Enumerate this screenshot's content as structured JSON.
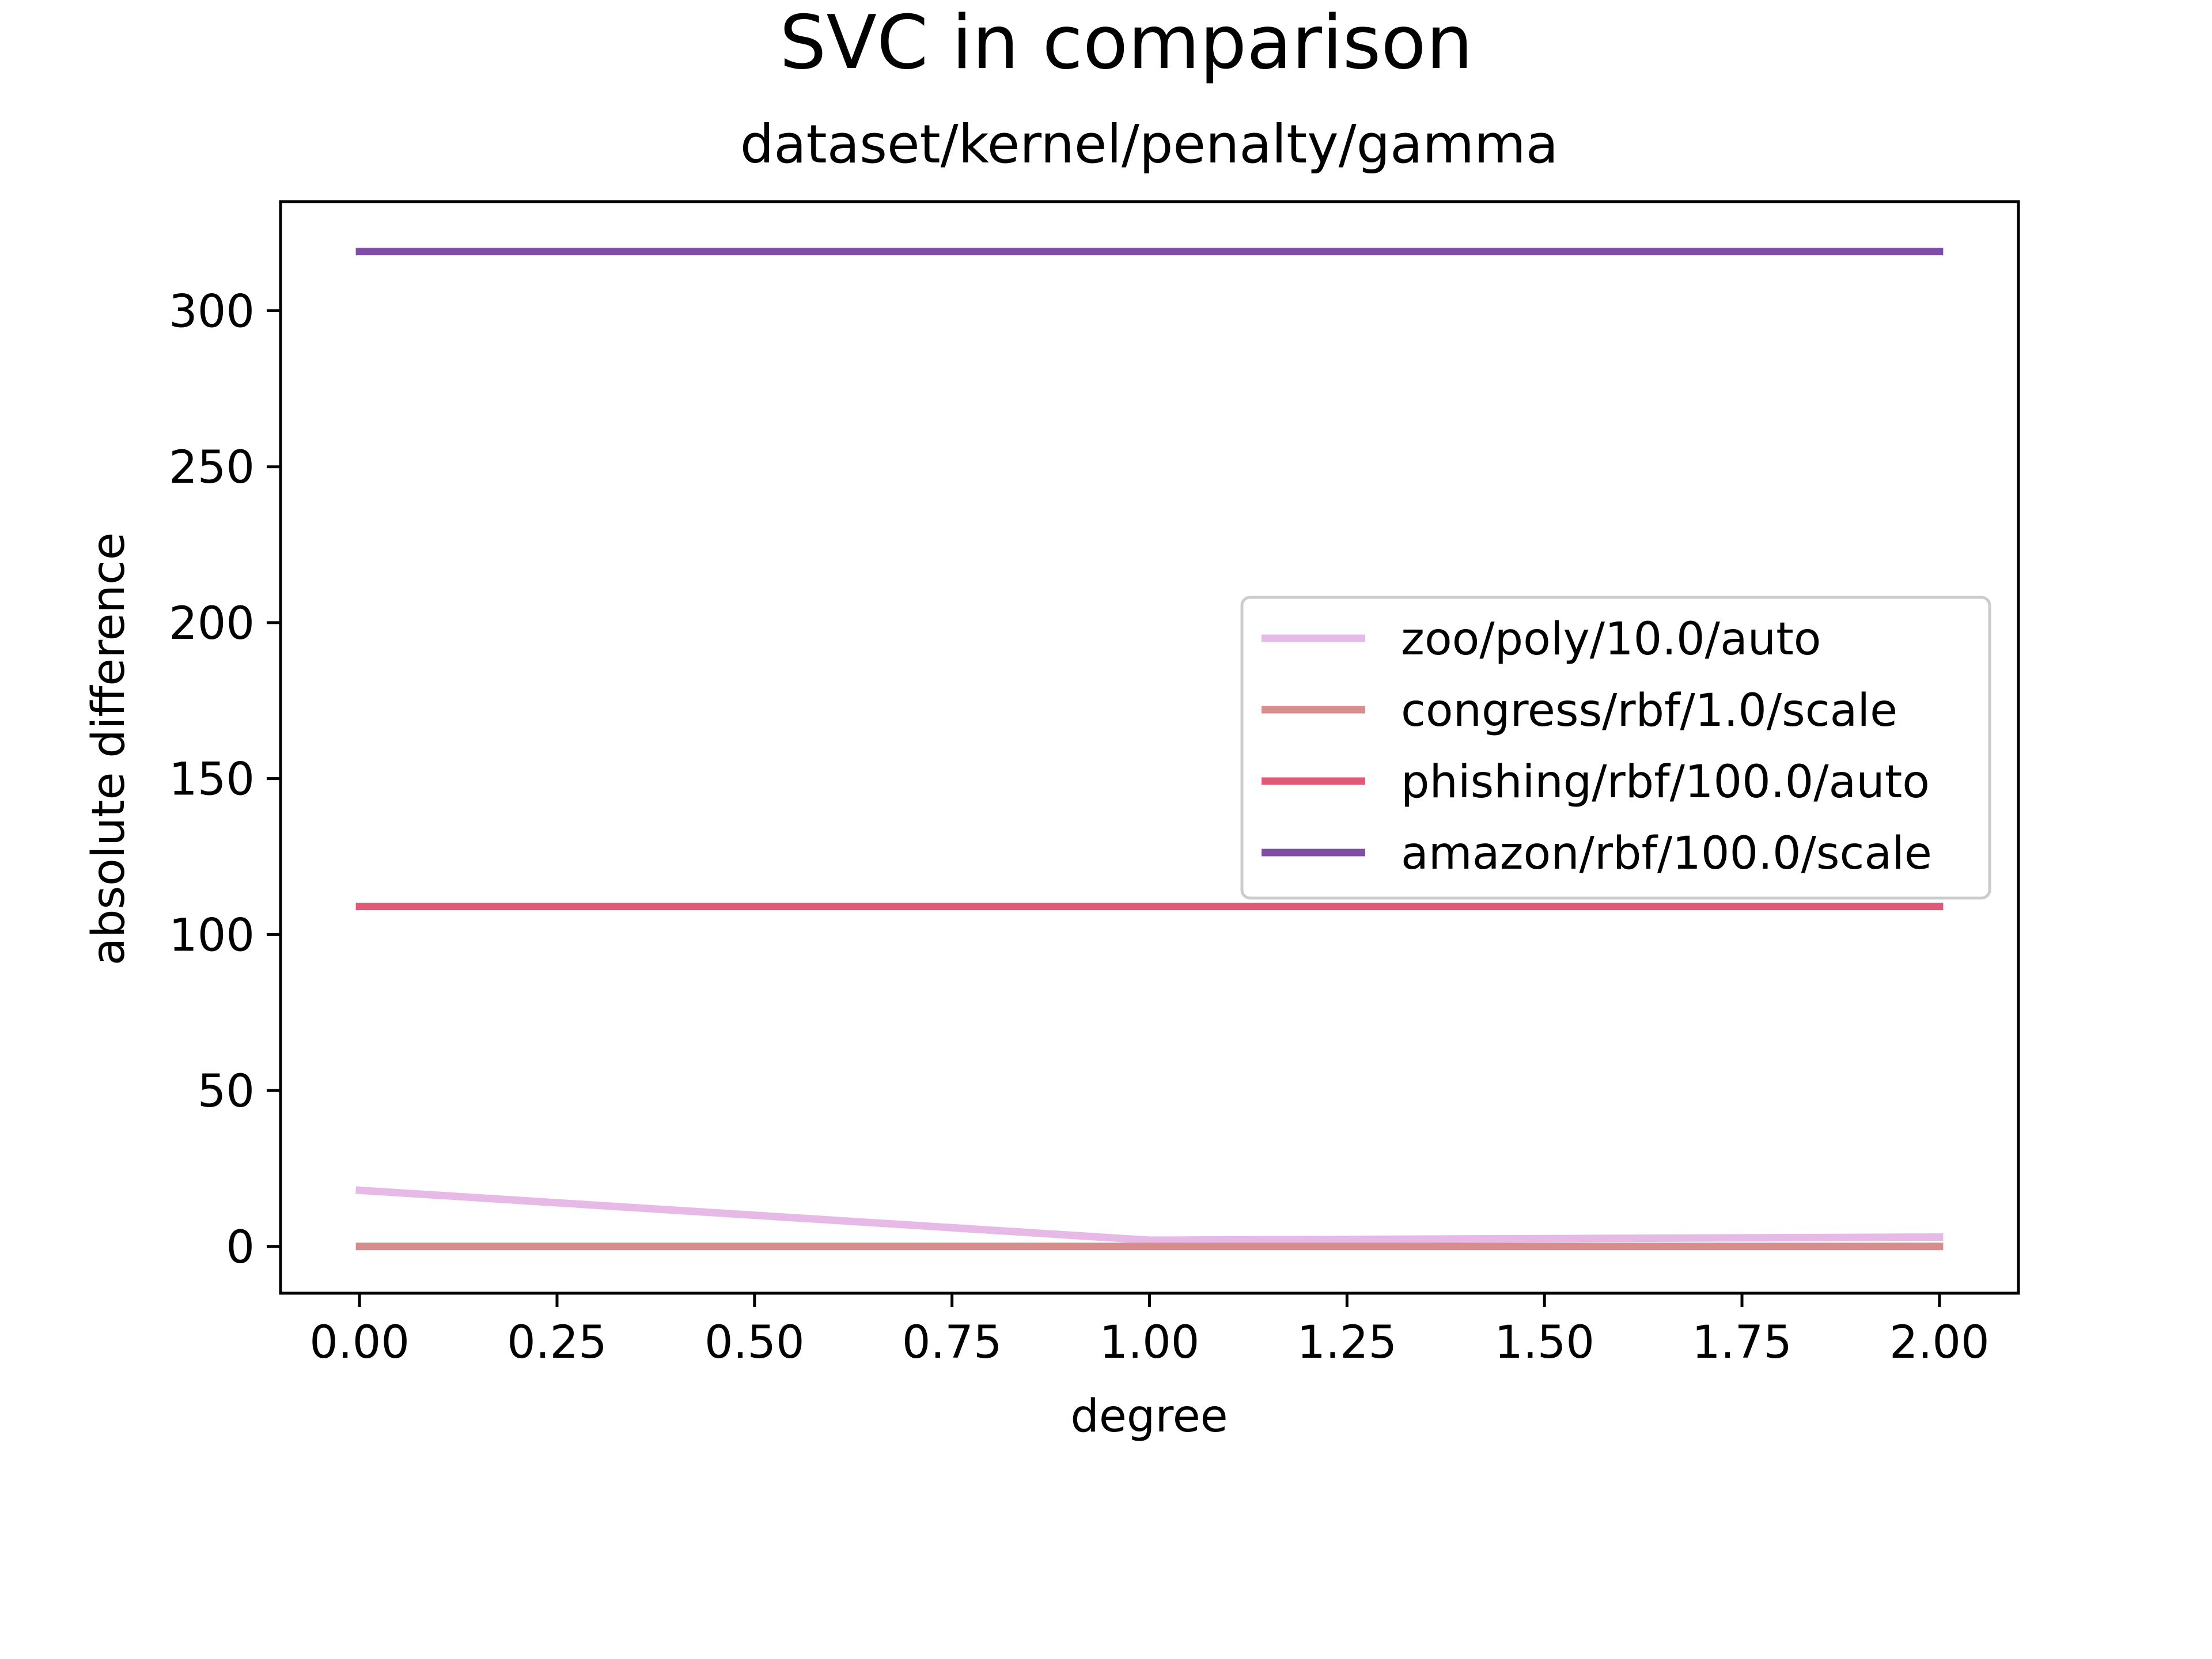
{
  "chart_data": {
    "type": "line",
    "title": "SVC in comparison",
    "subtitle": "dataset/kernel/penalty/gamma",
    "xlabel": "degree",
    "ylabel": "absolute difference",
    "xlim": [
      -0.1,
      2.1
    ],
    "ylim": [
      -15,
      335
    ],
    "xticks": [
      0.0,
      0.25,
      0.5,
      0.75,
      1.0,
      1.25,
      1.5,
      1.75,
      2.0
    ],
    "xtick_labels": [
      "0.00",
      "0.25",
      "0.50",
      "0.75",
      "1.00",
      "1.25",
      "1.50",
      "1.75",
      "2.00"
    ],
    "yticks": [
      0,
      50,
      100,
      150,
      200,
      250,
      300
    ],
    "ytick_labels": [
      "0",
      "50",
      "100",
      "150",
      "200",
      "250",
      "300"
    ],
    "grid": false,
    "legend_position": "center-right",
    "x": [
      0,
      1,
      2
    ],
    "series": [
      {
        "name": "zoo/poly/10.0/auto",
        "color": "#e6b9e6",
        "values": [
          18,
          2,
          3
        ]
      },
      {
        "name": "congress/rbf/1.0/scale",
        "color": "#d98c8c",
        "values": [
          0,
          0,
          0
        ]
      },
      {
        "name": "phishing/rbf/100.0/auto",
        "color": "#e05a78",
        "values": [
          109,
          109,
          109
        ]
      },
      {
        "name": "amazon/rbf/100.0/scale",
        "color": "#7f4ea6",
        "values": [
          319,
          319,
          319
        ]
      }
    ]
  }
}
